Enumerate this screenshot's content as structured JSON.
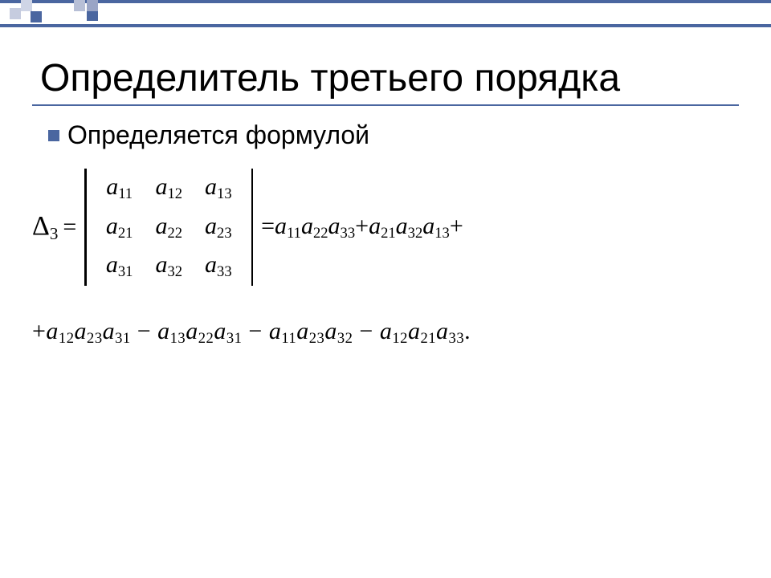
{
  "colors": {
    "accent": "#4a66a0",
    "light1": "#c6ccdf",
    "light2": "#cfd5e6",
    "light3": "#b7bfd6",
    "light4": "#9aa5c6",
    "background": "#ffffff",
    "text": "#000000"
  },
  "title": "Определитель третьего порядка",
  "bullet": "Определяется формулой",
  "formula": {
    "lhs_symbol": "Δ",
    "lhs_sub": "3",
    "matrix": {
      "rows": [
        [
          "a",
          "11",
          "a",
          "12",
          "a",
          "13"
        ],
        [
          "a",
          "21",
          "a",
          "22",
          "a",
          "23"
        ],
        [
          "a",
          "31",
          "a",
          "32",
          "a",
          "33"
        ]
      ]
    },
    "rhs_line1_terms": [
      {
        "sign": "=",
        "factors": [
          [
            "a",
            "11"
          ],
          [
            "a",
            "22"
          ],
          [
            "a",
            "33"
          ]
        ]
      },
      {
        "sign": "+",
        "factors": [
          [
            "a",
            "21"
          ],
          [
            "a",
            "32"
          ],
          [
            "a",
            "13"
          ]
        ]
      }
    ],
    "rhs_line1_trailing": "+",
    "rhs_line2_leading": "+",
    "rhs_line2_terms": [
      {
        "sign": "",
        "factors": [
          [
            "a",
            "12"
          ],
          [
            "a",
            "23"
          ],
          [
            "a",
            "31"
          ]
        ]
      },
      {
        "sign": "−",
        "factors": [
          [
            "a",
            "13"
          ],
          [
            "a",
            "22"
          ],
          [
            "a",
            "31"
          ]
        ]
      },
      {
        "sign": "−",
        "factors": [
          [
            "a",
            "11"
          ],
          [
            "a",
            "23"
          ],
          [
            "a",
            "32"
          ]
        ]
      },
      {
        "sign": "−",
        "factors": [
          [
            "a",
            "12"
          ],
          [
            "a",
            "21"
          ],
          [
            "a",
            "33"
          ]
        ]
      }
    ],
    "rhs_line2_trailing": "."
  },
  "typography": {
    "title_fontsize": 48,
    "bullet_fontsize": 32,
    "math_fontsize": 30,
    "math_font": "Times New Roman",
    "ui_font": "Arial"
  }
}
